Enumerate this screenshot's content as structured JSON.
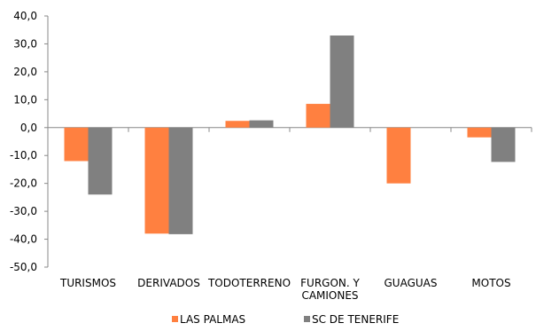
{
  "chart_data": {
    "type": "bar",
    "title": "",
    "xlabel": "",
    "ylabel": "",
    "ylim": [
      -50,
      40
    ],
    "ytick_step": 10,
    "ytick_labels": [
      "40,0",
      "30,0",
      "20,0",
      "10,0",
      "0,0",
      "-10,0",
      "-20,0",
      "-30,0",
      "-40,0",
      "-50,0"
    ],
    "grid": false,
    "legend_position": "bottom",
    "categories": [
      [
        "TURISMOS"
      ],
      [
        "DERIVADOS"
      ],
      [
        "TODOTERRENO"
      ],
      [
        "FURGON. Y",
        "CAMIONES"
      ],
      [
        "GUAGUAS"
      ],
      [
        "MOTOS"
      ]
    ],
    "series": [
      {
        "name": "LAS PALMAS",
        "color": "#ff8040",
        "values": [
          -12.0,
          -38.0,
          2.4,
          8.5,
          -20.0,
          -3.5
        ]
      },
      {
        "name": "SC DE TENERIFE",
        "color": "#808080",
        "values": [
          -24.0,
          -38.2,
          2.6,
          33.0,
          0.0,
          -12.3
        ]
      }
    ]
  }
}
